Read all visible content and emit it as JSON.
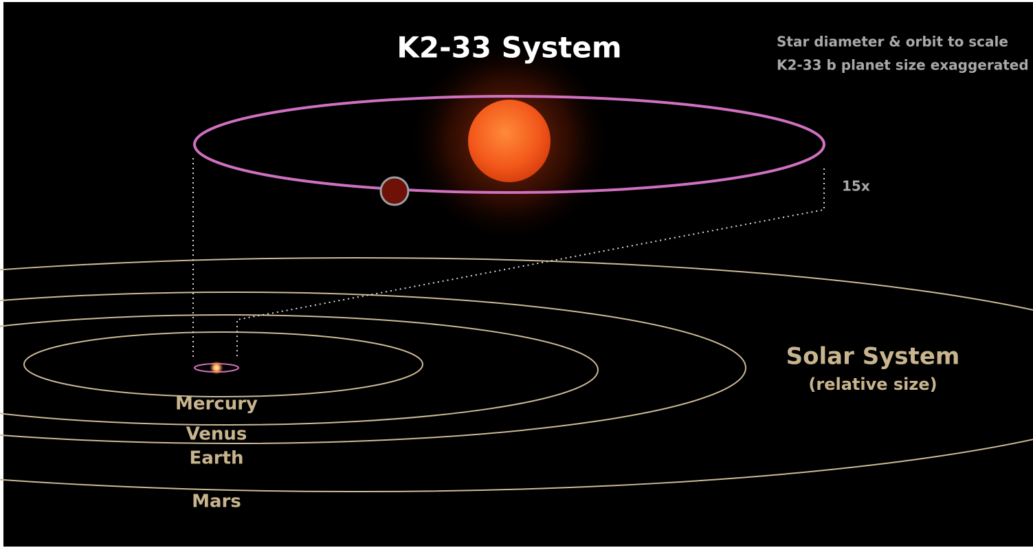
{
  "header": {
    "title": "K2-33 System",
    "notes": [
      "Star diameter & orbit to scale",
      "K2-33 b planet size exaggerated"
    ]
  },
  "scale_label": "15x",
  "solar_system": {
    "title": "Solar System",
    "subtitle": "(relative size)",
    "planets": [
      "Mercury",
      "Venus",
      "Earth",
      "Mars"
    ]
  }
}
